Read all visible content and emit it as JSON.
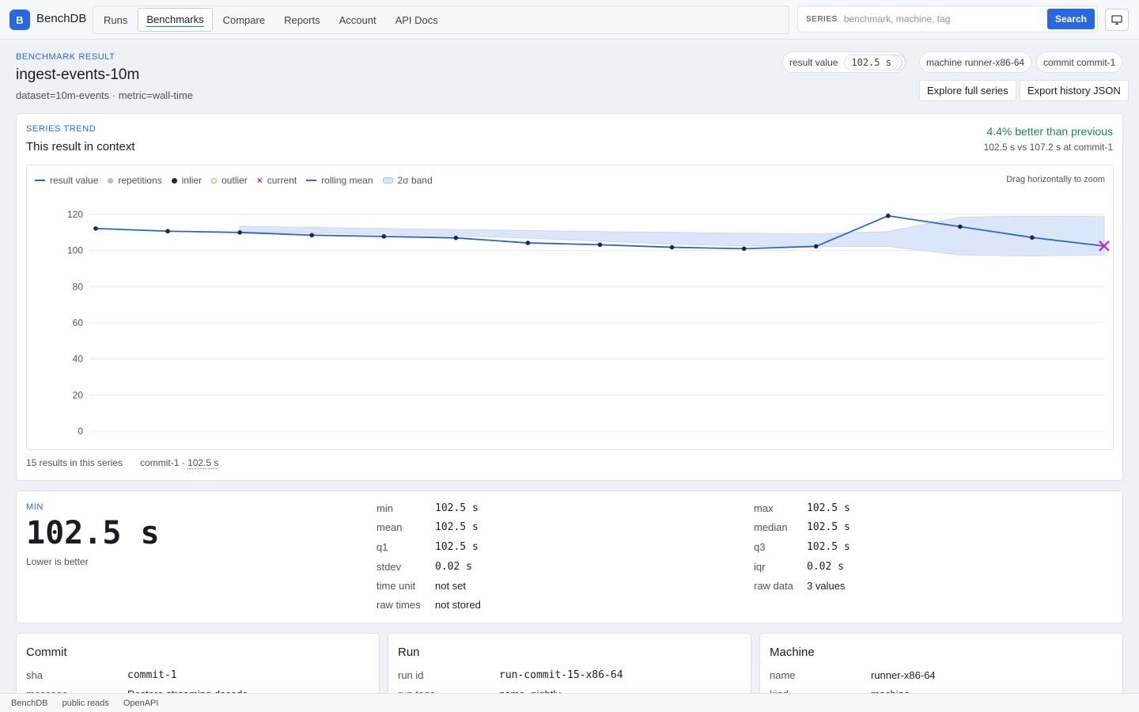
{
  "app": {
    "logo_letter": "B",
    "name": "BenchDB"
  },
  "nav": {
    "items": [
      "Runs",
      "Benchmarks",
      "Compare",
      "Reports",
      "Account",
      "API Docs"
    ],
    "active": "Benchmarks"
  },
  "search": {
    "tag": "SERIES",
    "placeholder": "benchmark, machine, tag",
    "button": "Search"
  },
  "header": {
    "eyebrow": "BENCHMARK RESULT",
    "title": "ingest-events-10m",
    "subtitle": "dataset=10m-events · metric=wall-time",
    "chips": {
      "result_label": "result value",
      "result_value": "102.5 s",
      "machine": "machine runner-x86-64",
      "commit": "commit commit-1"
    },
    "buttons": {
      "explore": "Explore full series",
      "export": "Export history JSON"
    }
  },
  "trend": {
    "eyebrow": "SERIES TREND",
    "title": "This result in context",
    "delta": "4.4% better than previous",
    "delta_sub": "102.5 s vs 107.2 s at commit-1",
    "zoom_hint": "Drag horizontally to zoom",
    "footer_count": "15 results in this series",
    "footer_commit": "commit-1 · ",
    "footer_value": "102.5 s"
  },
  "chart_data": {
    "type": "line",
    "legend": [
      {
        "name": "result value",
        "kind": "line",
        "color": "#2a62d6"
      },
      {
        "name": "repetitions",
        "kind": "dot",
        "color": "#b7bcc6"
      },
      {
        "name": "inlier",
        "kind": "dot",
        "color": "#1f2937"
      },
      {
        "name": "outlier",
        "kind": "ring",
        "color": "#d4a233"
      },
      {
        "name": "current",
        "kind": "x",
        "color": "#c026b5"
      },
      {
        "name": "rolling mean",
        "kind": "line",
        "color": "#7c3aed"
      },
      {
        "name": "2σ band",
        "kind": "band",
        "color": "#c9d8f7"
      }
    ],
    "y_ticks": [
      0,
      20,
      40,
      60,
      80,
      100,
      120
    ],
    "ylim": [
      0,
      120
    ],
    "x": [
      1,
      2,
      3,
      4,
      5,
      6,
      7,
      8,
      9,
      10,
      11,
      12,
      13,
      14,
      15
    ],
    "series": [
      {
        "name": "result value",
        "values": [
          112.2,
          110.7,
          110.0,
          108.5,
          107.8,
          107.0,
          104.2,
          103.2,
          101.8,
          101.0,
          102.3,
          119.2,
          113.2,
          107.2,
          102.5
        ]
      }
    ],
    "band_upper": [
      null,
      null,
      113.5,
      112.8,
      112.2,
      111.6,
      111.0,
      110.5,
      110.0,
      109.6,
      109.2,
      110.5,
      118.5,
      119.0,
      118.8
    ],
    "band_lower": [
      null,
      null,
      110.2,
      109.8,
      109.0,
      108.2,
      106.8,
      105.2,
      103.5,
      102.5,
      102.3,
      102.2,
      97.5,
      97.0,
      97.5
    ],
    "current_index": 14
  },
  "stats": {
    "eyebrow": "MIN",
    "value": "102.5 s",
    "hint": "Lower is better",
    "left": [
      {
        "k": "min",
        "v": "102.5 s",
        "mono": true
      },
      {
        "k": "mean",
        "v": "102.5 s",
        "mono": true
      },
      {
        "k": "q1",
        "v": "102.5 s",
        "mono": true
      },
      {
        "k": "stdev",
        "v": "0.02 s",
        "mono": true
      },
      {
        "k": "time unit",
        "v": "not set",
        "mono": false
      },
      {
        "k": "raw times",
        "v": "not stored",
        "mono": false
      }
    ],
    "right": [
      {
        "k": "max",
        "v": "102.5 s",
        "mono": true
      },
      {
        "k": "median",
        "v": "102.5 s",
        "mono": true
      },
      {
        "k": "q3",
        "v": "102.5 s",
        "mono": true
      },
      {
        "k": "iqr",
        "v": "0.02 s",
        "mono": true
      },
      {
        "k": "raw data",
        "v": "3 values",
        "mono": false
      }
    ]
  },
  "commit": {
    "title": "Commit",
    "rows": [
      {
        "k": "sha",
        "v": "commit-1"
      },
      {
        "k": "message",
        "v": "Restore streaming decode"
      }
    ]
  },
  "run": {
    "title": "Run",
    "rows": [
      {
        "k": "run id",
        "v": "run-commit-15-x86-64"
      },
      {
        "k": "run tags",
        "v": "name=nightly"
      }
    ]
  },
  "machine": {
    "title": "Machine",
    "rows": [
      {
        "k": "name",
        "v": "runner-x86-64"
      },
      {
        "k": "kind",
        "v": "machine"
      }
    ]
  },
  "footer": {
    "links": [
      "BenchDB",
      "public reads",
      "OpenAPI"
    ]
  }
}
